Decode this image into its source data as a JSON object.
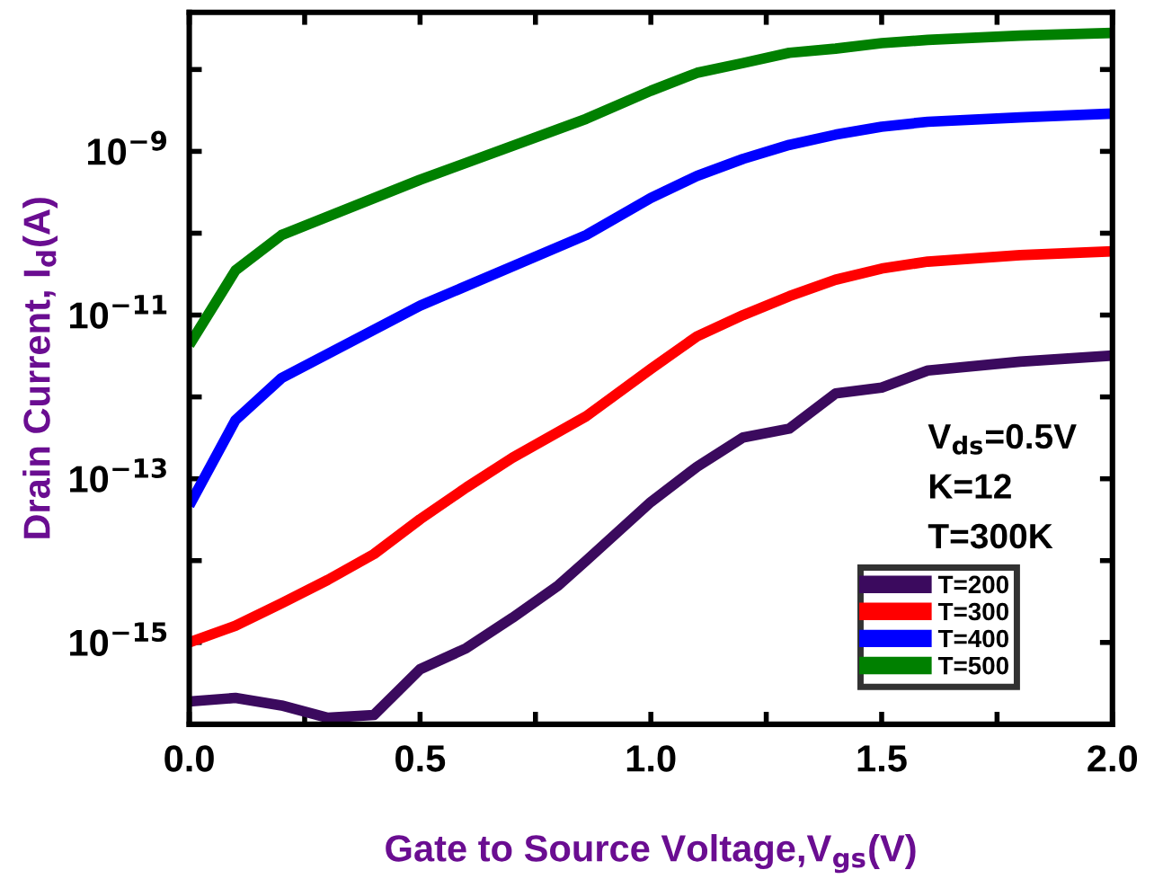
{
  "chart_data": {
    "type": "line",
    "xlabel": "Gate to Source Voltage,V$_{gs}$(V)",
    "ylabel": "Drain Current, I$_{d}$(A)",
    "annotations": [
      "V$_{ds}$=0.5V",
      "K=12",
      "T=300K"
    ],
    "log": "y",
    "xlim": [
      0,
      2
    ],
    "ylim": [
      1e-16,
      5e-08
    ],
    "xticks": [
      {
        "value": 0,
        "label": "0.0"
      },
      {
        "value": 0.25,
        "label": null
      },
      {
        "value": 0.5,
        "label": "0.5"
      },
      {
        "value": 0.75,
        "label": null
      },
      {
        "value": 1.0,
        "label": "1.0"
      },
      {
        "value": 1.25,
        "label": null
      },
      {
        "value": 1.5,
        "label": "1.5"
      },
      {
        "value": 1.75,
        "label": null
      },
      {
        "value": 2.0,
        "label": "2.0"
      }
    ],
    "yticks": [
      {
        "value": 1e-16,
        "label": null
      },
      {
        "value": 1e-15,
        "label": "10$^{−15}$"
      },
      {
        "value": 1e-14,
        "label": null
      },
      {
        "value": 1e-13,
        "label": "10$^{−13}$"
      },
      {
        "value": 1e-12,
        "label": null
      },
      {
        "value": 1e-11,
        "label": "10$^{−11}$"
      },
      {
        "value": 1e-10,
        "label": null
      },
      {
        "value": 1e-09,
        "label": "10$^{−9}$"
      },
      {
        "value": 1e-08,
        "label": null
      }
    ],
    "grid": false,
    "legend": "bottom right",
    "marker": "none",
    "line_style": "solid",
    "series": [
      {
        "name": "T=200",
        "color": "#3b0a5e",
        "x": [
          0,
          0.1,
          0.2,
          0.3,
          0.4,
          0.5,
          0.6,
          0.7,
          0.8,
          0.86,
          1.0,
          1.1,
          1.2,
          1.3,
          1.4,
          1.5,
          1.6,
          1.8,
          2.0
        ],
        "values": [
          1.9e-16,
          2.1e-16,
          1.7e-16,
          1.2e-16,
          1.3e-16,
          4.7e-16,
          8.5e-16,
          2e-15,
          5e-15,
          1e-14,
          5.2e-14,
          1.4e-13,
          3.2e-13,
          4.1e-13,
          1.1e-12,
          1.3e-12,
          2.1e-12,
          2.7e-12,
          3.2e-12
        ]
      },
      {
        "name": "T=300",
        "color": "#ff0000",
        "x": [
          0,
          0.1,
          0.2,
          0.3,
          0.4,
          0.5,
          0.6,
          0.7,
          0.86,
          1.0,
          1.1,
          1.2,
          1.3,
          1.4,
          1.5,
          1.6,
          1.8,
          2.0
        ],
        "values": [
          1e-15,
          1.6e-15,
          3e-15,
          5.8e-15,
          1.2e-14,
          3.2e-14,
          7.8e-14,
          1.8e-13,
          5.8e-13,
          2.2e-12,
          5.5e-12,
          1e-11,
          1.7e-11,
          2.7e-11,
          3.7e-11,
          4.5e-11,
          5.4e-11,
          6e-11
        ]
      },
      {
        "name": "T=400",
        "color": "#0000ff",
        "x": [
          0,
          0.1,
          0.2,
          0.5,
          0.86,
          1.0,
          1.1,
          1.2,
          1.3,
          1.4,
          1.5,
          1.6,
          1.8,
          2.0
        ],
        "values": [
          4.7e-14,
          5.2e-13,
          1.7e-12,
          1.3e-11,
          9.5e-11,
          2.7e-10,
          5e-10,
          8.1e-10,
          1.2e-09,
          1.6e-09,
          2e-09,
          2.3e-09,
          2.6e-09,
          2.9e-09
        ]
      },
      {
        "name": "T=500",
        "color": "#008000",
        "x": [
          0,
          0.1,
          0.2,
          0.5,
          0.86,
          1.0,
          1.1,
          1.2,
          1.3,
          1.4,
          1.5,
          1.6,
          1.8,
          2.0
        ],
        "values": [
          4.3e-12,
          3.5e-11,
          9.5e-11,
          4.5e-10,
          2.5e-09,
          5.5e-09,
          9.1e-09,
          1.2e-08,
          1.6e-08,
          1.8e-08,
          2.1e-08,
          2.3e-08,
          2.6e-08,
          2.8e-08
        ]
      }
    ]
  }
}
